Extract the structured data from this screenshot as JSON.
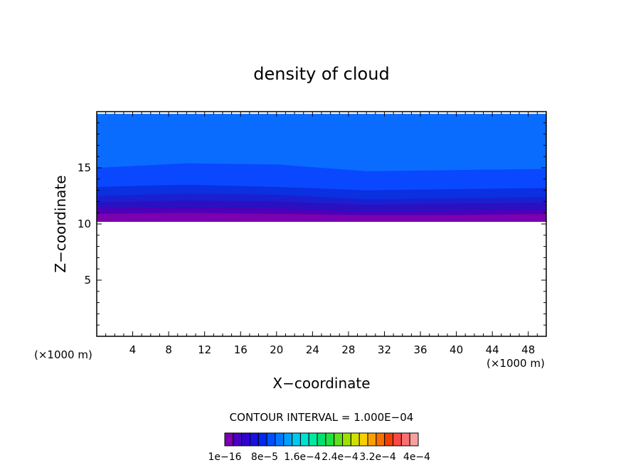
{
  "chart_data": {
    "type": "heatmap",
    "title": "density of cloud",
    "xlabel": "X−coordinate",
    "ylabel": "Z−coordinate",
    "x_unit": "(×1000 m)",
    "x_unit_right": "(×1000 m)",
    "xlim": [
      0,
      50
    ],
    "ylim": [
      0,
      20
    ],
    "x_ticks": [
      "4",
      "8",
      "12",
      "16",
      "20",
      "24",
      "28",
      "32",
      "36",
      "40",
      "44",
      "48"
    ],
    "y_ticks": [
      "5",
      "10",
      "15"
    ],
    "contour_interval": "CONTOUR INTERVAL = 1.000E−04",
    "colorbar_labels": [
      "1e−16",
      "8e−5",
      "1.6e−4",
      "2.4e−4",
      "3.2e−4",
      "4e−4"
    ],
    "colorbar_colors": [
      "#7a00b0",
      "#4a00c0",
      "#3000d0",
      "#1a10e0",
      "#0028f0",
      "#0050ff",
      "#0078ff",
      "#00a0ff",
      "#00c8f0",
      "#00e0d0",
      "#00e8a0",
      "#00e070",
      "#20e040",
      "#60e020",
      "#a0e000",
      "#d0e000",
      "#f8d000",
      "#f8a000",
      "#f87000",
      "#f04000",
      "#f84848",
      "#f87070",
      "#f8a0a0"
    ],
    "bands": [
      {
        "z_top": [
          19.8,
          19.8,
          19.8,
          19.8,
          19.8,
          19.8
        ],
        "color": "#0a6cff"
      },
      {
        "z_top": [
          15.0,
          15.4,
          15.3,
          14.7,
          14.8,
          14.9
        ],
        "color": "#0a48ff"
      },
      {
        "z_top": [
          13.3,
          13.5,
          13.3,
          13.0,
          13.1,
          13.2
        ],
        "color": "#0a30e0"
      },
      {
        "z_top": [
          12.5,
          12.7,
          12.6,
          12.2,
          12.3,
          12.4
        ],
        "color": "#1a20d0"
      },
      {
        "z_top": [
          11.9,
          12.1,
          12.0,
          11.7,
          11.8,
          11.9
        ],
        "color": "#2a10c0"
      },
      {
        "z_top": [
          11.4,
          11.5,
          11.4,
          11.1,
          11.2,
          11.3
        ],
        "color": "#4c00b8"
      },
      {
        "z_top": [
          10.9,
          11.0,
          10.9,
          10.8,
          10.8,
          10.9
        ],
        "color": "#7a00b0"
      }
    ],
    "band_x": [
      0,
      10,
      20,
      30,
      40,
      50
    ],
    "cloud_base": 10.2
  }
}
